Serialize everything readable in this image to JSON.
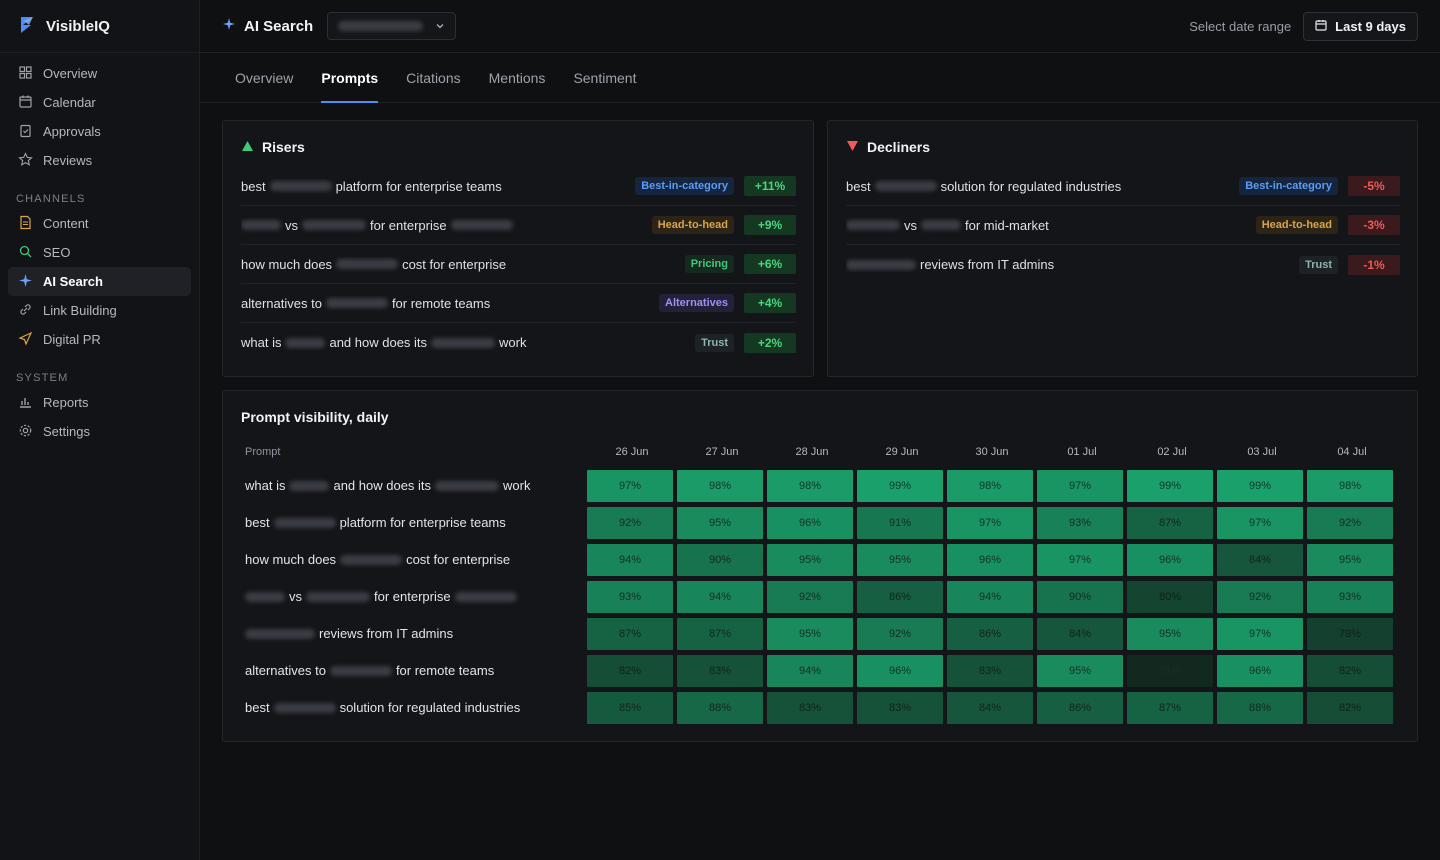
{
  "app": {
    "name": "VisibleIQ"
  },
  "sidebar": {
    "top_items": [
      {
        "label": "Overview",
        "icon": "grid-icon"
      },
      {
        "label": "Calendar",
        "icon": "calendar-icon"
      },
      {
        "label": "Approvals",
        "icon": "clipboard-check-icon"
      },
      {
        "label": "Reviews",
        "icon": "star-icon"
      }
    ],
    "channels_label": "CHANNELS",
    "channel_items": [
      {
        "label": "Content",
        "icon": "document-icon"
      },
      {
        "label": "SEO",
        "icon": "search-icon"
      },
      {
        "label": "AI Search",
        "icon": "sparkle-icon",
        "active": true
      },
      {
        "label": "Link Building",
        "icon": "link-icon"
      },
      {
        "label": "Digital PR",
        "icon": "send-icon"
      }
    ],
    "system_label": "SYSTEM",
    "system_items": [
      {
        "label": "Reports",
        "icon": "bar-chart-icon"
      },
      {
        "label": "Settings",
        "icon": "gear-icon"
      }
    ]
  },
  "header": {
    "title": "AI Search",
    "date_range_label": "Select date range",
    "date_range_value": "Last 9 days"
  },
  "tabs": [
    "Overview",
    "Prompts",
    "Citations",
    "Mentions",
    "Sentiment"
  ],
  "active_tab": "Prompts",
  "risers": {
    "title": "Risers",
    "rows": [
      {
        "parts": [
          "best",
          "",
          "platform for enterprise teams"
        ],
        "tag": "Best-in-category",
        "tag_type": "best",
        "delta": "+11%"
      },
      {
        "parts": [
          "",
          "vs",
          "",
          "for enterprise",
          ""
        ],
        "tag": "Head-to-head",
        "tag_type": "head",
        "delta": "+9%"
      },
      {
        "parts": [
          "how much does",
          "",
          "cost for enterprise"
        ],
        "tag": "Pricing",
        "tag_type": "pricing",
        "delta": "+6%"
      },
      {
        "parts": [
          "alternatives to",
          "",
          "for remote teams"
        ],
        "tag": "Alternatives",
        "tag_type": "alt",
        "delta": "+4%"
      },
      {
        "parts": [
          "what is",
          "",
          "and how does its",
          "",
          "work"
        ],
        "tag": "Trust",
        "tag_type": "trust",
        "delta": "+2%"
      }
    ]
  },
  "decliners": {
    "title": "Decliners",
    "rows": [
      {
        "parts": [
          "best",
          "",
          "solution for regulated industries"
        ],
        "tag": "Best-in-category",
        "tag_type": "best",
        "delta": "-5%"
      },
      {
        "parts": [
          "",
          "vs",
          "",
          "for mid-market"
        ],
        "tag": "Head-to-head",
        "tag_type": "head",
        "delta": "-3%"
      },
      {
        "parts": [
          "",
          "reviews from IT admins"
        ],
        "tag": "Trust",
        "tag_type": "trust",
        "delta": "-1%"
      }
    ]
  },
  "heatmap": {
    "title": "Prompt visibility, daily",
    "prompt_header": "Prompt",
    "dates": [
      "26 Jun",
      "27 Jun",
      "28 Jun",
      "29 Jun",
      "30 Jun",
      "01 Jul",
      "02 Jul",
      "03 Jul",
      "04 Jul"
    ],
    "rows": [
      {
        "parts": [
          "what is",
          "",
          "and how does its",
          "",
          "work"
        ],
        "values": [
          97,
          98,
          98,
          99,
          98,
          97,
          99,
          99,
          98
        ]
      },
      {
        "parts": [
          "best",
          "",
          "platform for enterprise teams"
        ],
        "values": [
          92,
          95,
          96,
          91,
          97,
          93,
          87,
          97,
          92
        ]
      },
      {
        "parts": [
          "how much does",
          "",
          "cost for enterprise"
        ],
        "values": [
          94,
          90,
          95,
          95,
          96,
          97,
          96,
          84,
          95
        ]
      },
      {
        "parts": [
          "",
          "vs",
          "",
          "for enterprise",
          ""
        ],
        "values": [
          93,
          94,
          92,
          86,
          94,
          90,
          80,
          92,
          93
        ]
      },
      {
        "parts": [
          "",
          "reviews from IT admins"
        ],
        "values": [
          87,
          87,
          95,
          92,
          86,
          84,
          95,
          97,
          79
        ]
      },
      {
        "parts": [
          "alternatives to",
          "",
          "for remote teams"
        ],
        "values": [
          82,
          83,
          94,
          96,
          83,
          95,
          71,
          96,
          82
        ]
      },
      {
        "parts": [
          "best",
          "",
          "solution for regulated industries"
        ],
        "values": [
          85,
          88,
          83,
          83,
          84,
          86,
          87,
          88,
          82
        ]
      }
    ]
  },
  "colors": {
    "accent": "#4f8cf7",
    "up": "#4bd67e",
    "down": "#f05a5a",
    "heat_high": "#1aa06b",
    "heat_low": "#12271e"
  }
}
